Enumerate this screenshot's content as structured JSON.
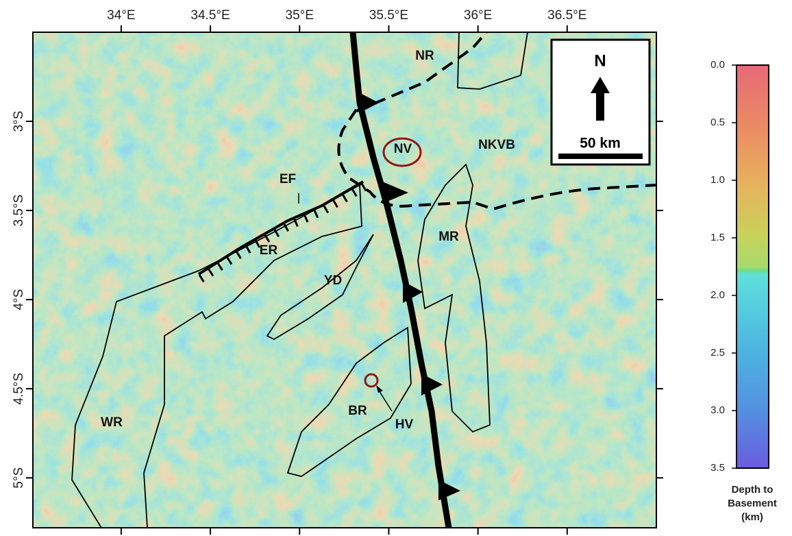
{
  "map": {
    "xlim": [
      33.505,
      37.0
    ],
    "ylim": [
      -2.5,
      -5.28
    ],
    "xticks": [
      {
        "value": 34,
        "label": "34°E"
      },
      {
        "value": 34.5,
        "label": "34.5°E"
      },
      {
        "value": 35,
        "label": "35°E"
      },
      {
        "value": 35.5,
        "label": "35.5°E"
      },
      {
        "value": 36,
        "label": "36°E"
      },
      {
        "value": 36.5,
        "label": "36.5°E"
      }
    ],
    "yticks": [
      {
        "value": -3,
        "label": "3°S"
      },
      {
        "value": -3.5,
        "label": "3.5°S"
      },
      {
        "value": -4,
        "label": "4°S"
      },
      {
        "value": -4.5,
        "label": "4.5°S"
      },
      {
        "value": -5,
        "label": "5°S"
      }
    ],
    "labels": {
      "NR": "NR",
      "NV": "NV",
      "NKVB": "NKVB",
      "EF": "EF",
      "ER": "ER",
      "MR": "MR",
      "YD": "YD",
      "BR": "BR",
      "HV": "HV",
      "WR": "WR"
    },
    "north": "N",
    "scale": "50 km"
  },
  "colorbar": {
    "lim": [
      0,
      3.5
    ],
    "ticks": [
      {
        "value": 0,
        "label": "0.0"
      },
      {
        "value": 0.5,
        "label": "0.5"
      },
      {
        "value": 1,
        "label": "1.0"
      },
      {
        "value": 1.5,
        "label": "1.5"
      },
      {
        "value": 2,
        "label": "2.0"
      },
      {
        "value": 2.5,
        "label": "2.5"
      },
      {
        "value": 3,
        "label": "3.0"
      },
      {
        "value": 3.5,
        "label": "3.5"
      }
    ],
    "title_lines": [
      "Depth to",
      "Basement",
      "(km)"
    ]
  }
}
